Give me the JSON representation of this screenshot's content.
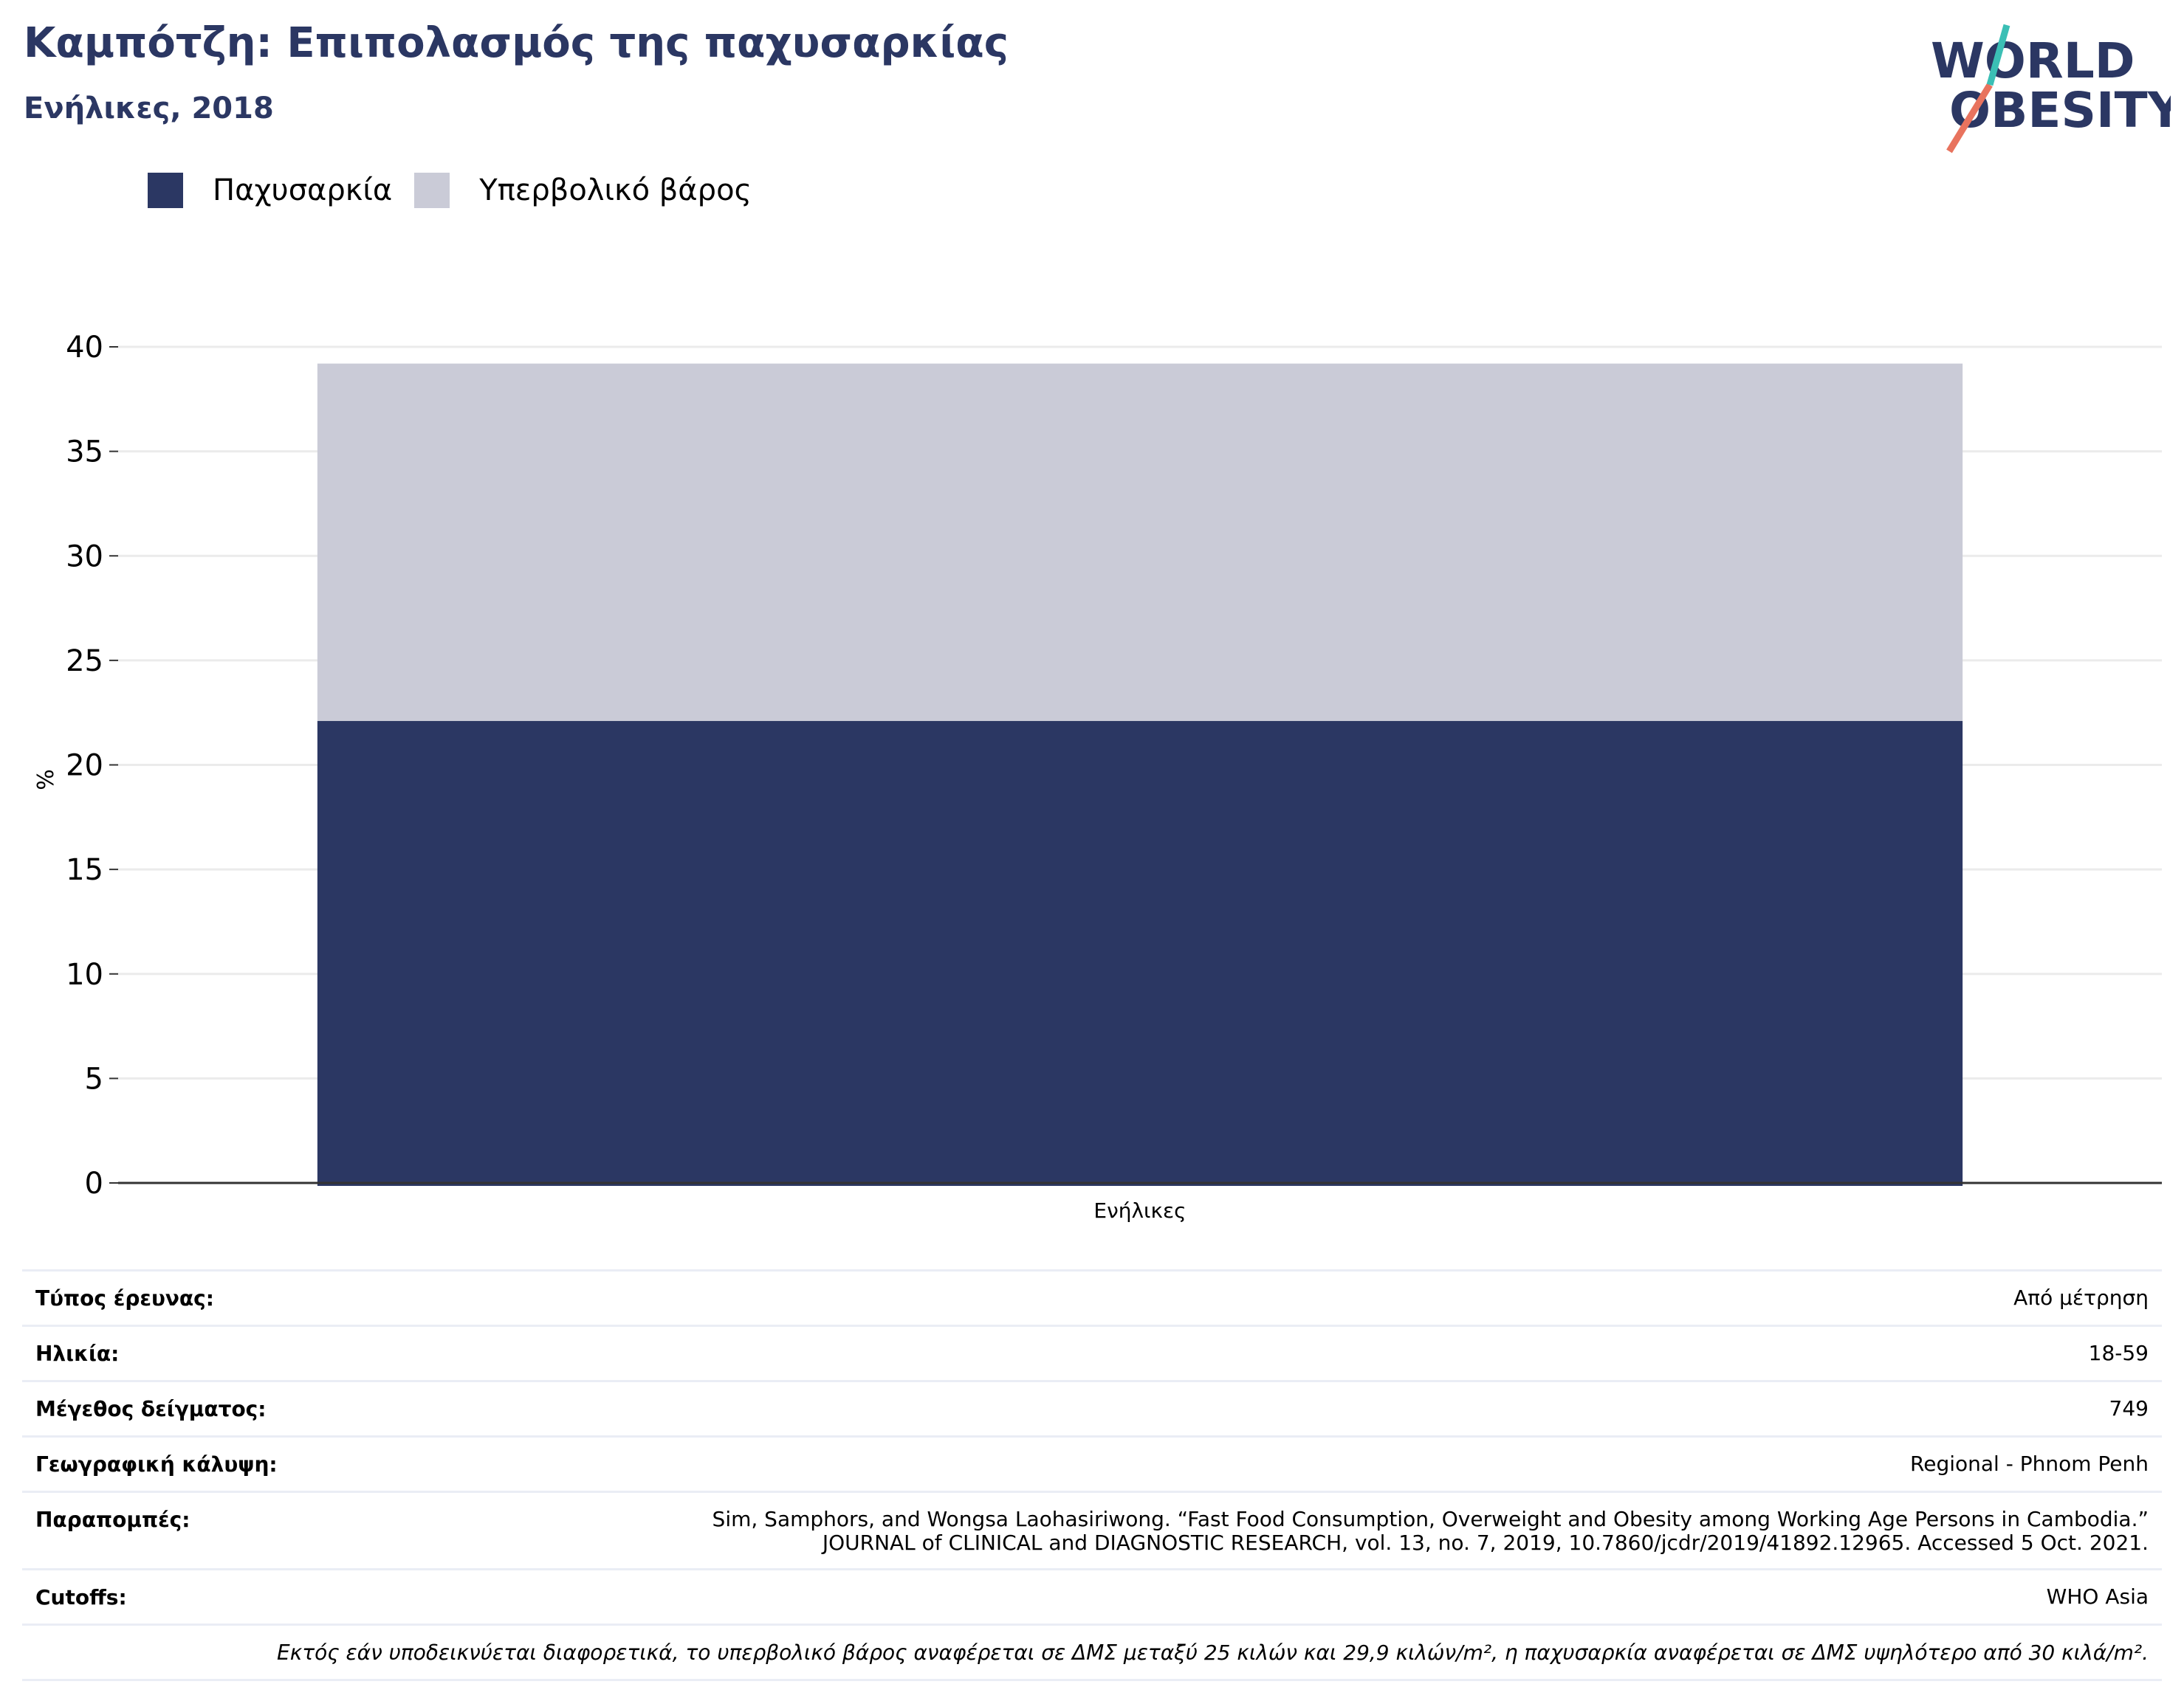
{
  "header": {
    "title": "Καμπότζη: Επιπολασμός της παχυσαρκίας",
    "subtitle": "Ενήλικες, 2018"
  },
  "logo": {
    "line1": "WORLD",
    "line2": "OBESITY",
    "colors": [
      "#2b3763",
      "#e8735e",
      "#3bbfb5"
    ]
  },
  "legend": [
    {
      "label": "Παχυσαρκία",
      "color": "#2b3763"
    },
    {
      "label": "Υπερβολικό βάρος",
      "color": "#cacbd7"
    }
  ],
  "chart_data": {
    "type": "bar",
    "stacked": true,
    "categories": [
      "Ενήλικες"
    ],
    "series": [
      {
        "name": "Παχυσαρκία",
        "values": [
          22.1
        ],
        "color": "#2b3763"
      },
      {
        "name": "Υπερβολικό βάρος",
        "values": [
          17.1
        ],
        "color": "#cacbd7"
      }
    ],
    "ylabel": "%",
    "ylim": [
      0,
      40
    ],
    "yticks": [
      0,
      5,
      10,
      15,
      20,
      25,
      30,
      35,
      40
    ],
    "grid": true,
    "legend_position": "top-left"
  },
  "info": {
    "rows": [
      {
        "key": "Τύπος έρευνας:",
        "value": "Από μέτρηση"
      },
      {
        "key": "Ηλικία:",
        "value": "18-59"
      },
      {
        "key": "Μέγεθος δείγματος:",
        "value": "749"
      },
      {
        "key": "Γεωγραφική κάλυψη:",
        "value": "Regional - Phnom Penh"
      },
      {
        "key": "Παραπομπές:",
        "value_lines": [
          "Sim, Samphors, and Wongsa Laohasiriwong. “Fast Food Consumption, Overweight and Obesity among Working Age Persons in Cambodia.”",
          "JOURNAL of CLINICAL and DIAGNOSTIC RESEARCH, vol. 13, no. 7, 2019, 10.7860/jcdr/2019/41892.12965. Accessed 5 Oct. 2021."
        ]
      },
      {
        "key": "Cutoffs:",
        "value": "WHO Asia"
      }
    ],
    "note": "Εκτός εάν υποδεικνύεται διαφορετικά, το υπερβολικό βάρος αναφέρεται σε ΔΜΣ μεταξύ 25 κιλών και 29,9 κιλών/m², η παχυσαρκία αναφέρεται σε ΔΜΣ υψηλότερο από 30 κιλά/m²."
  }
}
